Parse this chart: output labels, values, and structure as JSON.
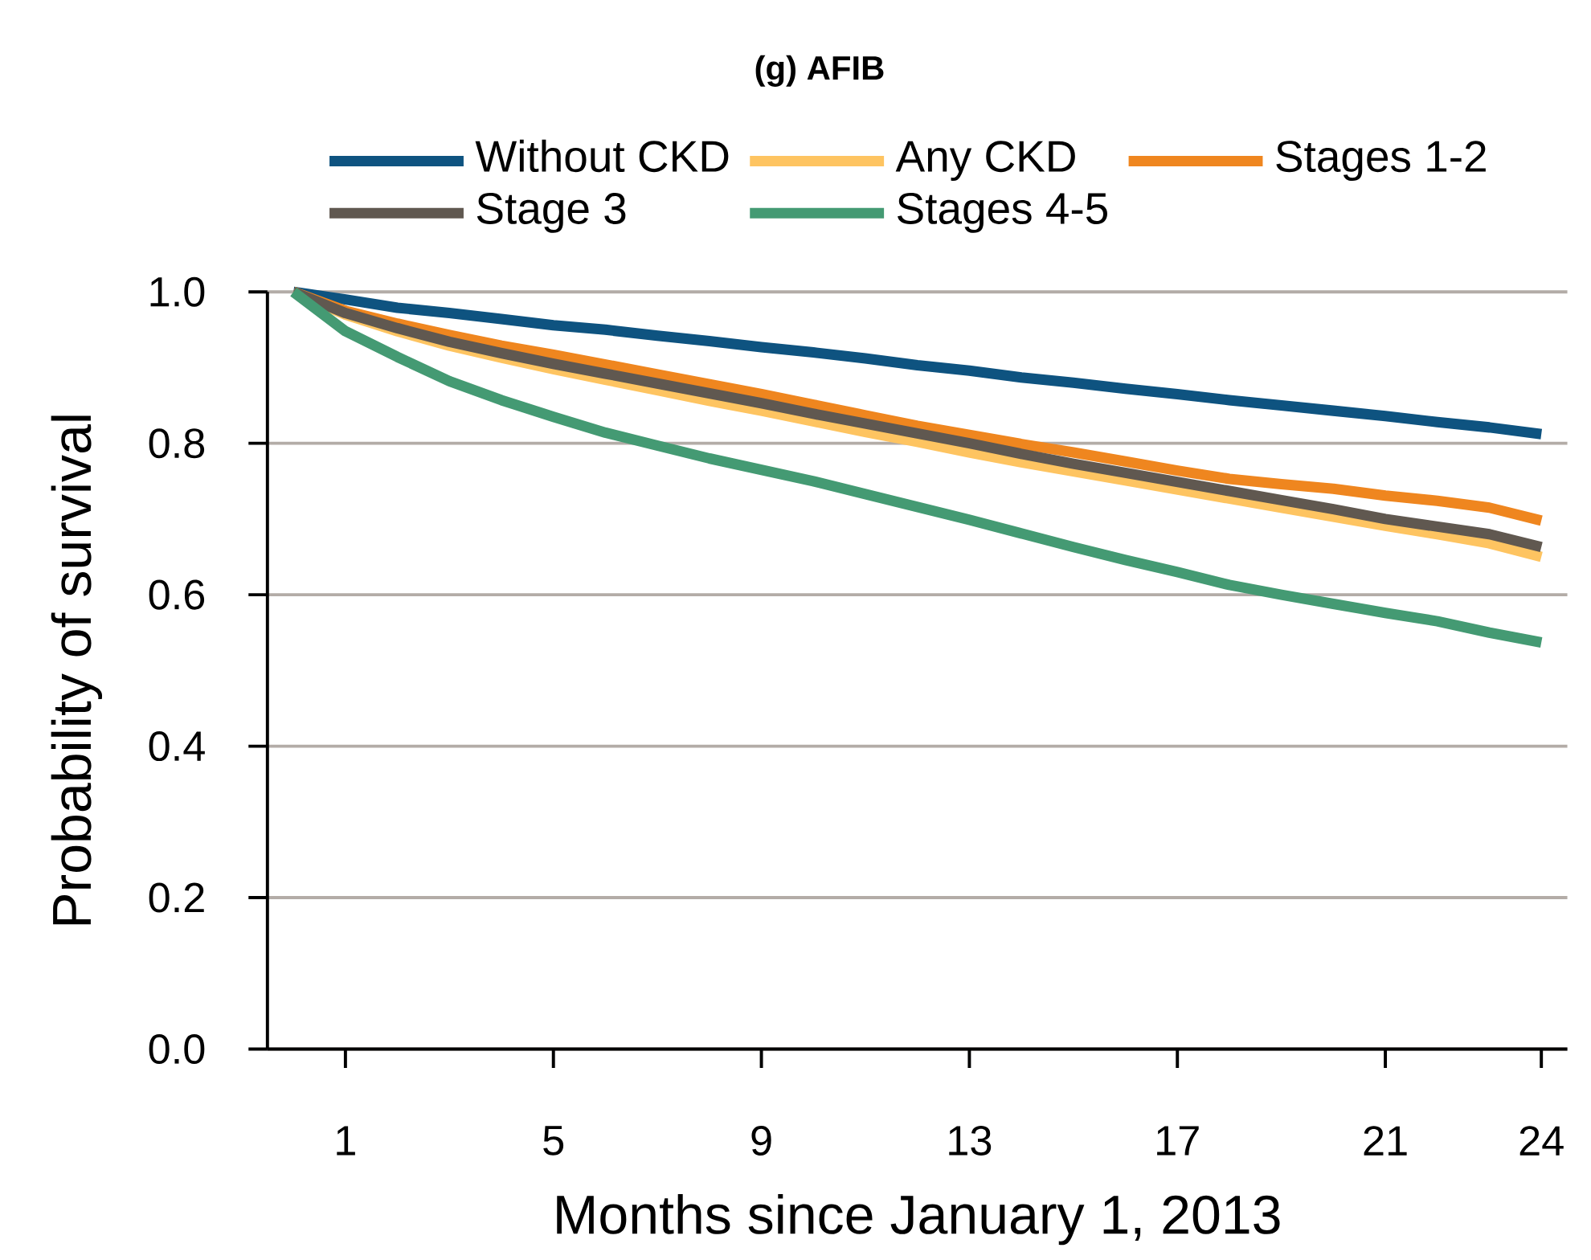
{
  "chart_data": {
    "type": "line",
    "title": "(g) AFIB",
    "xlabel": "Months since January 1, 2013",
    "ylabel": "Probability of survival",
    "x": [
      0,
      1,
      2,
      3,
      4,
      5,
      6,
      7,
      8,
      9,
      10,
      11,
      12,
      13,
      14,
      15,
      16,
      17,
      18,
      19,
      20,
      21,
      22,
      23,
      24
    ],
    "series": [
      {
        "name": "Without CKD",
        "color": "#0e5380",
        "values": [
          1.0,
          0.99,
          0.979,
          0.972,
          0.964,
          0.956,
          0.95,
          0.942,
          0.935,
          0.927,
          0.92,
          0.912,
          0.903,
          0.896,
          0.887,
          0.88,
          0.872,
          0.865,
          0.857,
          0.85,
          0.843,
          0.836,
          0.828,
          0.821,
          0.812
        ]
      },
      {
        "name": "Any CKD",
        "color": "#fec461",
        "values": [
          1.0,
          0.97,
          0.948,
          0.929,
          0.913,
          0.898,
          0.884,
          0.87,
          0.856,
          0.843,
          0.829,
          0.815,
          0.802,
          0.788,
          0.775,
          0.763,
          0.751,
          0.739,
          0.727,
          0.715,
          0.703,
          0.691,
          0.68,
          0.668,
          0.65
        ]
      },
      {
        "name": "Stages 1-2",
        "color": "#ef861f",
        "values": [
          1.0,
          0.975,
          0.958,
          0.943,
          0.929,
          0.917,
          0.904,
          0.891,
          0.878,
          0.865,
          0.851,
          0.837,
          0.823,
          0.811,
          0.799,
          0.788,
          0.776,
          0.764,
          0.753,
          0.746,
          0.74,
          0.731,
          0.724,
          0.715,
          0.698
        ]
      },
      {
        "name": "Stage 3",
        "color": "#605850",
        "values": [
          1.0,
          0.972,
          0.952,
          0.934,
          0.919,
          0.905,
          0.892,
          0.879,
          0.866,
          0.853,
          0.839,
          0.826,
          0.813,
          0.8,
          0.786,
          0.773,
          0.761,
          0.749,
          0.737,
          0.725,
          0.713,
          0.7,
          0.69,
          0.68,
          0.663
        ]
      },
      {
        "name": "Stages 4-5",
        "color": "#449a73",
        "values": [
          1.0,
          0.948,
          0.914,
          0.882,
          0.857,
          0.835,
          0.814,
          0.797,
          0.78,
          0.765,
          0.75,
          0.733,
          0.716,
          0.699,
          0.681,
          0.663,
          0.646,
          0.63,
          0.613,
          0.6,
          0.588,
          0.576,
          0.565,
          0.55,
          0.537
        ]
      }
    ],
    "xlim": [
      -0.5,
      24.5
    ],
    "xticks": [
      1,
      5,
      9,
      13,
      17,
      21,
      24
    ],
    "ylim": [
      0,
      1
    ],
    "yticks": [
      {
        "value": 0,
        "label": "0.0"
      },
      0.2,
      0.4,
      0.6,
      0.8,
      {
        "value": 1,
        "label": "1.0"
      }
    ],
    "grid": "y",
    "legend": "top"
  }
}
